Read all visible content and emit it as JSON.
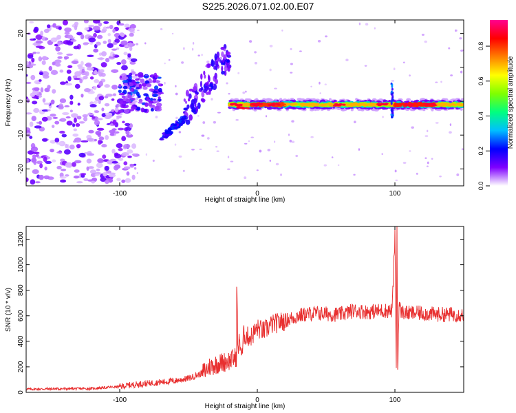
{
  "title": "S225.2026.071.02.00.E07",
  "chart_data": [
    {
      "type": "heatmap",
      "title": "S225.2026.071.02.00.E07",
      "xlabel": "Height of straight line (km)",
      "ylabel": "Frequency (Hz)",
      "xlim": [
        -168,
        150
      ],
      "ylim": [
        -25,
        24
      ],
      "xticks": [
        -100,
        0,
        100
      ],
      "yticks": [
        -20,
        -10,
        0,
        10,
        20
      ],
      "colorbar": {
        "label": "Normalized spectral amplitude",
        "range": [
          0,
          0.95
        ],
        "ticks": [
          0.0,
          0.2,
          0.4,
          0.6,
          0.8
        ],
        "colors": [
          "#ffffff",
          "#7f00ff",
          "#0000ff",
          "#00bfff",
          "#00ff7f",
          "#7fff00",
          "#ffff00",
          "#ff7f00",
          "#ff0000",
          "#ff0090"
        ]
      },
      "features": [
        {
          "x_range": [
            -168,
            -100
          ],
          "f_range": [
            -24,
            24
          ],
          "amplitude": 0.05,
          "description": "scattered noise"
        },
        {
          "x_range": [
            -100,
            -70
          ],
          "f_range": [
            -3,
            8
          ],
          "amplitude": 0.2
        },
        {
          "x_range": [
            -70,
            -53
          ],
          "f_start": -11,
          "f_end": -5,
          "amplitude": 0.22
        },
        {
          "x_range": [
            -53,
            -20
          ],
          "f_start": -3,
          "f_end": 14,
          "amplitude": 0.2
        },
        {
          "x_range": [
            -20,
            150
          ],
          "f_center": -1,
          "amplitude": 0.85,
          "description": "main signal band"
        },
        {
          "x": 98,
          "f_range": [
            -5,
            6
          ],
          "amplitude": 0.3,
          "description": "vertical spike"
        }
      ]
    },
    {
      "type": "line",
      "xlabel": "Height of straight line (km)",
      "ylabel": "SNR (10 * v/v)",
      "xlim": [
        -168,
        150
      ],
      "ylim": [
        0,
        1300
      ],
      "xticks": [
        -100,
        0,
        100
      ],
      "yticks": [
        0,
        200,
        400,
        600,
        800,
        1000,
        1200
      ],
      "series": [
        {
          "name": "SNR",
          "color": "#e83030",
          "x": [
            -168,
            -140,
            -120,
            -100,
            -90,
            -80,
            -70,
            -60,
            -50,
            -40,
            -35,
            -30,
            -20,
            -15,
            -15,
            -14,
            -13,
            -11,
            -10,
            -5,
            0,
            5,
            10,
            20,
            30,
            40,
            50,
            60,
            70,
            80,
            90,
            98,
            100,
            101,
            101.5,
            102,
            103,
            104,
            105,
            110,
            120,
            130,
            140,
            150
          ],
          "y": [
            25,
            28,
            30,
            45,
            60,
            70,
            80,
            90,
            110,
            150,
            200,
            220,
            250,
            280,
            860,
            300,
            420,
            280,
            450,
            430,
            500,
            480,
            530,
            560,
            600,
            620,
            615,
            610,
            640,
            630,
            640,
            640,
            1230,
            200,
            1300,
            170,
            700,
            640,
            630,
            620,
            620,
            610,
            610,
            610
          ],
          "noise": 30
        }
      ]
    }
  ]
}
